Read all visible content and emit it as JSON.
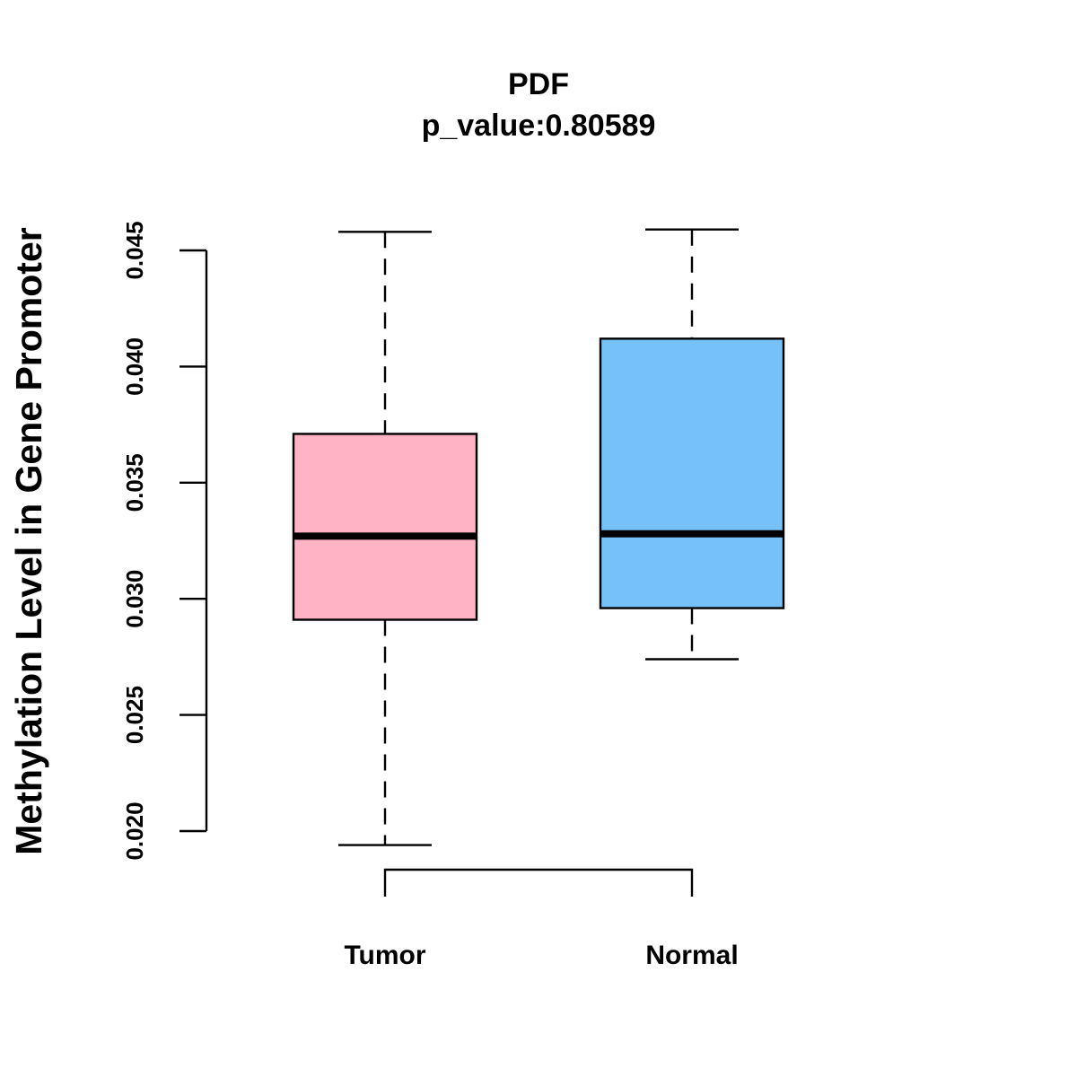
{
  "chart_data": {
    "type": "boxplot",
    "title": "PDF",
    "subtitle": "p_value:0.80589",
    "xlabel": "",
    "ylabel": "Methylation Level in Gene Promoter",
    "ylim": [
      0.02,
      0.045
    ],
    "yticks": [
      0.02,
      0.025,
      0.03,
      0.035,
      0.04,
      0.045
    ],
    "ytick_labels": [
      "0.020",
      "0.025",
      "0.030",
      "0.035",
      "0.040",
      "0.045"
    ],
    "categories": [
      "Tumor",
      "Normal"
    ],
    "series": [
      {
        "name": "Tumor",
        "color": "#FFB3C5",
        "whisker_low": 0.0194,
        "q1": 0.0291,
        "median": 0.0327,
        "q3": 0.0371,
        "whisker_high": 0.0458
      },
      {
        "name": "Normal",
        "color": "#76C1F8",
        "whisker_low": 0.0274,
        "q1": 0.0296,
        "median": 0.0328,
        "q3": 0.0412,
        "whisker_high": 0.0459
      }
    ],
    "comparison_bracket": [
      "Tumor",
      "Normal"
    ],
    "grid": false,
    "legend": "none"
  }
}
